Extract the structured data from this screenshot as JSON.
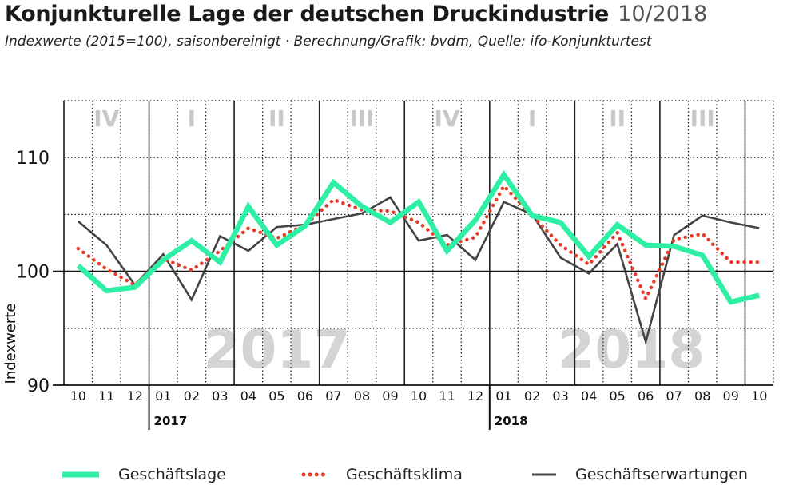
{
  "title": "Konjunkturelle Lage der deutschen Druckindustrie",
  "date": "10/2018",
  "subtitle": "Indexwerte (2015=100), saisonbereinigt · Berechnung/Grafik: bvdm, Quelle: ifo-Konjunkturtest",
  "colors": {
    "geschaeftslage": "#2ef0a4",
    "geschaeftsklima": "#e63b26",
    "geschaeftserwartungen": "#444444",
    "quarter_label": "#c8c8c8",
    "year_watermark": "#d4d4d4"
  },
  "chart_data": {
    "type": "line",
    "ylabel": "Indexwerte",
    "ylim": [
      90,
      115
    ],
    "yticks": [
      90,
      100,
      110
    ],
    "grid": true,
    "categories": [
      "10",
      "11",
      "12",
      "01",
      "02",
      "03",
      "04",
      "05",
      "06",
      "07",
      "08",
      "09",
      "10",
      "11",
      "12",
      "01",
      "02",
      "03",
      "04",
      "05",
      "06",
      "07",
      "08",
      "09",
      "10"
    ],
    "year_labels": [
      {
        "label": "2017",
        "start_index": 3
      },
      {
        "label": "2018",
        "start_index": 15
      }
    ],
    "quarter_labels": [
      "IV",
      "I",
      "II",
      "III",
      "IV",
      "I",
      "II",
      "III"
    ],
    "year_watermarks": [
      "2017",
      "2018"
    ],
    "legend_position": "bottom",
    "series": [
      {
        "name": "Geschäftslage",
        "style": "solid-thick",
        "values": [
          100.5,
          98.3,
          98.6,
          101.0,
          102.7,
          100.8,
          105.7,
          102.3,
          104.0,
          107.8,
          105.7,
          104.3,
          106.1,
          101.8,
          104.5,
          108.5,
          104.9,
          104.3,
          101.3,
          104.1,
          102.3,
          102.2,
          101.4,
          97.3,
          97.9
        ]
      },
      {
        "name": "Geschäftsklima",
        "style": "dotted",
        "values": [
          102.0,
          100.2,
          98.8,
          101.1,
          100.1,
          101.8,
          103.8,
          102.9,
          104.1,
          106.3,
          105.4,
          105.3,
          104.3,
          102.3,
          103.0,
          107.5,
          104.9,
          102.3,
          100.6,
          103.4,
          97.6,
          102.8,
          103.3,
          100.8,
          100.8
        ]
      },
      {
        "name": "Geschäftserwartungen",
        "style": "solid",
        "values": [
          104.4,
          102.3,
          98.8,
          101.5,
          97.5,
          103.1,
          101.8,
          103.9,
          104.1,
          104.6,
          105.1,
          106.5,
          102.7,
          103.2,
          101.0,
          106.1,
          105.0,
          101.2,
          99.8,
          102.4,
          93.8,
          103.2,
          104.9,
          104.3,
          103.8
        ]
      }
    ]
  }
}
